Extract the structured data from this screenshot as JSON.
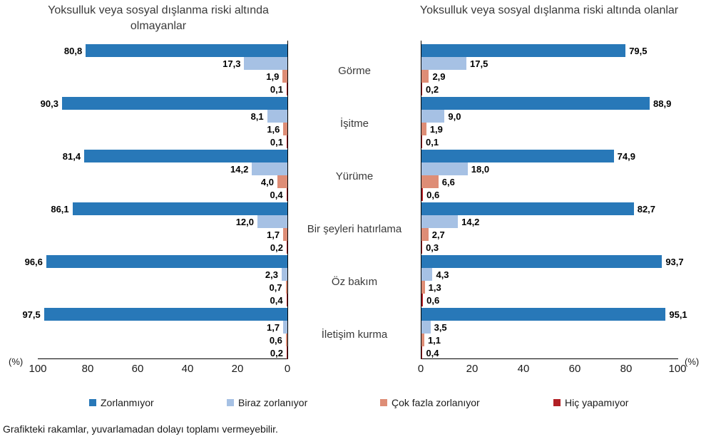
{
  "chart_data": {
    "type": "bar",
    "orientation": "horizontal",
    "categories": [
      "Görme",
      "İşitme",
      "Yürüme",
      "Bir şeyleri hatırlama",
      "Öz bakım",
      "İletişim kurma"
    ],
    "series_labels": [
      "Zorlanmıyor",
      "Biraz zorlanıyor",
      "Çok fazla zorlanıyor",
      "Hiç yapamıyor"
    ],
    "series_colors": [
      "#2878b8",
      "#a6c1e4",
      "#de8d76",
      "#b22025"
    ],
    "xlim": [
      0,
      100
    ],
    "axis_unit": "(%)",
    "decimal_separator": ",",
    "panels": [
      {
        "title": "Yoksulluk veya sosyal dışlanma riski altında olmayanlar",
        "axis_direction": "right-to-left",
        "axis_ticks": [
          "100",
          "80",
          "60",
          "40",
          "20",
          "0"
        ],
        "series": [
          {
            "name": "Zorlanmıyor",
            "values": [
              80.8,
              90.3,
              81.4,
              86.1,
              96.6,
              97.5
            ]
          },
          {
            "name": "Biraz zorlanıyor",
            "values": [
              17.3,
              8.1,
              14.2,
              12.0,
              2.3,
              1.7
            ]
          },
          {
            "name": "Çok fazla zorlanıyor",
            "values": [
              1.9,
              1.6,
              4.0,
              1.7,
              0.7,
              0.6
            ]
          },
          {
            "name": "Hiç yapamıyor",
            "values": [
              0.1,
              0.1,
              0.4,
              0.2,
              0.4,
              0.2
            ]
          }
        ]
      },
      {
        "title": "Yoksulluk veya sosyal dışlanma riski altında olanlar",
        "axis_direction": "left-to-right",
        "axis_ticks": [
          "0",
          "20",
          "40",
          "60",
          "80",
          "100"
        ],
        "series": [
          {
            "name": "Zorlanmıyor",
            "values": [
              79.5,
              88.9,
              74.9,
              82.7,
              93.7,
              95.1
            ]
          },
          {
            "name": "Biraz zorlanıyor",
            "values": [
              17.5,
              9.0,
              18.0,
              14.2,
              4.3,
              3.5
            ]
          },
          {
            "name": "Çok fazla zorlanıyor",
            "values": [
              2.9,
              1.9,
              6.6,
              2.7,
              1.3,
              1.1
            ]
          },
          {
            "name": "Hiç yapamıyor",
            "values": [
              0.2,
              0.1,
              0.6,
              0.3,
              0.6,
              0.4
            ]
          }
        ]
      }
    ]
  },
  "legend": {
    "items": [
      {
        "label": "Zorlanmıyor",
        "color": "#2878b8"
      },
      {
        "label": "Biraz zorlanıyor",
        "color": "#a6c1e4"
      },
      {
        "label": "Çok fazla zorlanıyor",
        "color": "#de8d76"
      },
      {
        "label": "Hiç yapamıyor",
        "color": "#b22025"
      }
    ]
  },
  "footnote": "Grafikteki rakamlar, yuvarlamadan dolayı toplamı vermeyebilir."
}
